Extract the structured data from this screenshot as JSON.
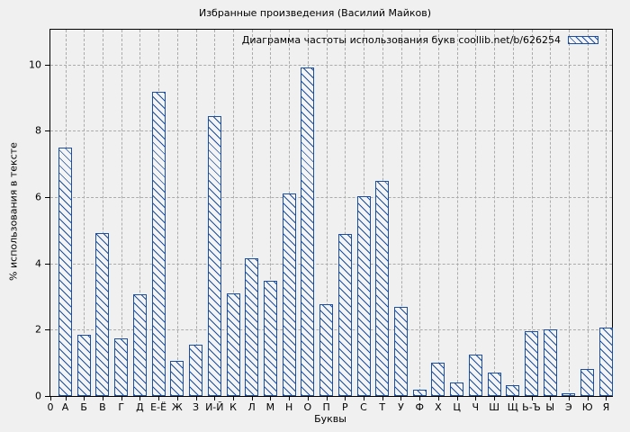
{
  "window": {
    "background_color": "#f0f0f0",
    "grid_color": "#ababab",
    "border_color": "#000000"
  },
  "chart_data": {
    "type": "bar",
    "title": "Избранные произведения (Василий Майков)",
    "legend": "Диаграмма частоты использования букв coollib.net/b/626254",
    "xlabel": "Буквы",
    "ylabel": "% использования в тексте",
    "x_origin_label": "0",
    "yticks": [
      0,
      2,
      4,
      6,
      8,
      10
    ],
    "ylim": [
      0,
      11.05
    ],
    "grid": true,
    "legend_position": "top-right-inside",
    "bar_border_color": "#1c4fa0",
    "bar_fill_color": "#f4f4f4",
    "hatch": "diagonal",
    "categories": [
      "А",
      "Б",
      "В",
      "Г",
      "Д",
      "Е-Ё",
      "Ж",
      "З",
      "И-Й",
      "К",
      "Л",
      "М",
      "Н",
      "О",
      "П",
      "Р",
      "С",
      "Т",
      "У",
      "Ф",
      "Х",
      "Ц",
      "Ч",
      "Ш",
      "Щ",
      "Ь-Ъ",
      "Ы",
      "Э",
      "Ю",
      "Я"
    ],
    "values": [
      7.5,
      1.85,
      4.92,
      1.75,
      3.08,
      9.18,
      1.05,
      1.54,
      8.44,
      3.1,
      4.16,
      3.48,
      6.12,
      9.9,
      2.78,
      4.88,
      6.04,
      6.48,
      2.68,
      0.18,
      1.0,
      0.4,
      1.26,
      0.7,
      0.33,
      1.96,
      2.02,
      0.08,
      0.82,
      2.05
    ]
  }
}
